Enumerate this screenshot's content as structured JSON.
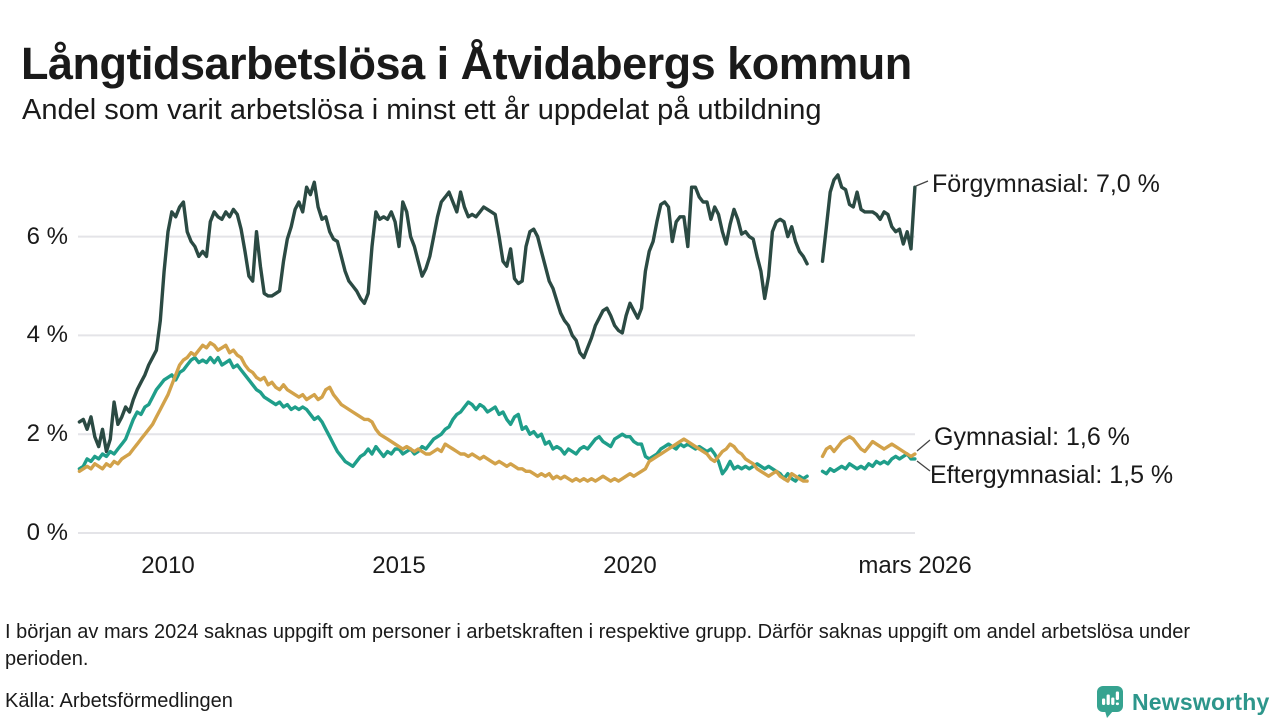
{
  "chart_data": {
    "type": "line",
    "title": "Långtidsarbetslösa i Åtvidabergs kommun",
    "subtitle": "Andel som varit arbetslösa i minst ett år uppdelat på utbildning",
    "unit": "%",
    "grid": true,
    "legend_position": "end-of-line-labels",
    "x_axis": {
      "ticks": [
        {
          "label": "2010",
          "year": 2010
        },
        {
          "label": "2015",
          "year": 2015
        },
        {
          "label": "2020",
          "year": 2020
        },
        {
          "label": "mars 2026",
          "year": 2026.17
        }
      ],
      "range_years": [
        2008.08,
        2026.25
      ]
    },
    "y_axis": {
      "unit": "%",
      "range": [
        0,
        7.5
      ],
      "ticks": [
        {
          "label": "0 %",
          "value": 0
        },
        {
          "label": "2 %",
          "value": 2
        },
        {
          "label": "4 %",
          "value": 4
        },
        {
          "label": "6 %",
          "value": 6
        }
      ]
    },
    "data_gap": {
      "from": "2023-12",
      "to": "2024-02"
    },
    "start_year": 2008,
    "start_month": 2,
    "frequency": "monthly",
    "series": [
      {
        "name": "Förgymnasial",
        "color": "#2b4a43",
        "end_value": "7,0 %",
        "end_label": "Förgymnasial: 7,0 %",
        "values": [
          2.25,
          2.3,
          2.1,
          2.35,
          1.95,
          1.75,
          2.1,
          1.65,
          1.9,
          2.65,
          2.2,
          2.35,
          2.55,
          2.45,
          2.7,
          2.9,
          3.05,
          3.2,
          3.4,
          3.55,
          3.7,
          4.3,
          5.3,
          6.1,
          6.5,
          6.4,
          6.6,
          6.7,
          6.1,
          5.9,
          5.8,
          5.6,
          5.7,
          5.6,
          6.3,
          6.5,
          6.4,
          6.35,
          6.5,
          6.4,
          6.55,
          6.45,
          6.15,
          5.7,
          5.2,
          5.1,
          6.1,
          5.4,
          4.85,
          4.8,
          4.8,
          4.85,
          4.9,
          5.5,
          5.95,
          6.2,
          6.55,
          6.7,
          6.5,
          7.0,
          6.85,
          7.1,
          6.6,
          6.35,
          6.4,
          6.1,
          5.95,
          5.9,
          5.6,
          5.3,
          5.1,
          5.0,
          4.9,
          4.75,
          4.65,
          4.85,
          5.8,
          6.5,
          6.35,
          6.4,
          6.35,
          6.5,
          6.3,
          5.8,
          6.7,
          6.5,
          6.0,
          5.8,
          5.5,
          5.2,
          5.35,
          5.6,
          6.0,
          6.4,
          6.7,
          6.8,
          6.9,
          6.7,
          6.5,
          6.9,
          6.6,
          6.4,
          6.45,
          6.4,
          6.5,
          6.6,
          6.55,
          6.5,
          6.45,
          6.0,
          5.5,
          5.4,
          5.75,
          5.15,
          5.05,
          5.1,
          5.8,
          6.1,
          6.15,
          6.0,
          5.7,
          5.4,
          5.1,
          4.95,
          4.7,
          4.45,
          4.3,
          4.2,
          4.0,
          3.9,
          3.65,
          3.55,
          3.75,
          3.95,
          4.2,
          4.35,
          4.5,
          4.55,
          4.4,
          4.2,
          4.1,
          4.05,
          4.4,
          4.65,
          4.5,
          4.35,
          4.55,
          5.3,
          5.7,
          5.9,
          6.3,
          6.65,
          6.7,
          6.6,
          5.9,
          6.3,
          6.4,
          6.4,
          5.8,
          7.0,
          7.0,
          6.8,
          6.7,
          6.7,
          6.35,
          6.6,
          6.45,
          6.1,
          5.85,
          6.25,
          6.55,
          6.35,
          6.05,
          6.1,
          6.0,
          5.95,
          5.6,
          5.3,
          4.75,
          5.2,
          6.1,
          6.3,
          6.35,
          6.3,
          6.0,
          6.2,
          5.9,
          5.7,
          5.6,
          5.45,
          null,
          null,
          null,
          5.5,
          6.2,
          6.9,
          7.15,
          7.25,
          7.0,
          6.95,
          6.65,
          6.6,
          6.9,
          6.55,
          6.5,
          6.5,
          6.5,
          6.45,
          6.35,
          6.5,
          6.45,
          6.2,
          6.1,
          6.15,
          5.85,
          6.1,
          5.75,
          7.0
        ]
      },
      {
        "name": "Eftergymnasial",
        "color": "#1f9e8a",
        "end_value": "1,5 %",
        "end_label": "Eftergymnasial: 1,5 %",
        "values": [
          1.3,
          1.35,
          1.5,
          1.45,
          1.55,
          1.5,
          1.6,
          1.55,
          1.65,
          1.6,
          1.7,
          1.8,
          1.9,
          2.1,
          2.3,
          2.45,
          2.4,
          2.55,
          2.6,
          2.75,
          2.9,
          3.0,
          3.1,
          3.15,
          3.2,
          3.1,
          3.25,
          3.3,
          3.4,
          3.5,
          3.55,
          3.45,
          3.5,
          3.45,
          3.55,
          3.45,
          3.55,
          3.4,
          3.45,
          3.5,
          3.35,
          3.4,
          3.3,
          3.2,
          3.1,
          3.0,
          2.9,
          2.85,
          2.75,
          2.7,
          2.65,
          2.6,
          2.65,
          2.55,
          2.6,
          2.5,
          2.55,
          2.5,
          2.55,
          2.5,
          2.4,
          2.3,
          2.35,
          2.25,
          2.1,
          1.95,
          1.8,
          1.65,
          1.55,
          1.45,
          1.4,
          1.35,
          1.45,
          1.55,
          1.6,
          1.7,
          1.6,
          1.75,
          1.65,
          1.55,
          1.65,
          1.6,
          1.7,
          1.7,
          1.6,
          1.65,
          1.7,
          1.6,
          1.65,
          1.75,
          1.7,
          1.8,
          1.9,
          1.95,
          2.0,
          2.1,
          2.15,
          2.3,
          2.4,
          2.45,
          2.55,
          2.65,
          2.6,
          2.5,
          2.6,
          2.55,
          2.45,
          2.5,
          2.55,
          2.4,
          2.45,
          2.3,
          2.2,
          2.35,
          2.4,
          2.1,
          2.15,
          2.0,
          2.05,
          1.95,
          2.0,
          1.8,
          1.85,
          1.7,
          1.75,
          1.7,
          1.6,
          1.7,
          1.65,
          1.6,
          1.7,
          1.75,
          1.7,
          1.8,
          1.9,
          1.95,
          1.85,
          1.8,
          1.75,
          1.9,
          1.95,
          2.0,
          1.95,
          1.95,
          1.85,
          1.8,
          1.8,
          1.55,
          1.5,
          1.55,
          1.6,
          1.7,
          1.75,
          1.8,
          1.75,
          1.7,
          1.8,
          1.75,
          1.8,
          1.75,
          1.7,
          1.75,
          1.7,
          1.65,
          1.7,
          1.6,
          1.45,
          1.2,
          1.3,
          1.45,
          1.3,
          1.35,
          1.3,
          1.35,
          1.3,
          1.35,
          1.4,
          1.35,
          1.3,
          1.35,
          1.3,
          1.25,
          1.2,
          1.1,
          1.2,
          1.1,
          1.05,
          1.15,
          1.1,
          1.15,
          null,
          null,
          null,
          1.25,
          1.2,
          1.3,
          1.25,
          1.3,
          1.35,
          1.3,
          1.4,
          1.35,
          1.3,
          1.35,
          1.3,
          1.4,
          1.35,
          1.45,
          1.4,
          1.45,
          1.4,
          1.5,
          1.55,
          1.5,
          1.55,
          1.6,
          1.5,
          1.5
        ]
      },
      {
        "name": "Gymnasial",
        "color": "#d2a24a",
        "end_value": "1,6 %",
        "end_label": "Gymnasial: 1,6 %",
        "values": [
          1.25,
          1.3,
          1.35,
          1.3,
          1.4,
          1.35,
          1.3,
          1.4,
          1.35,
          1.45,
          1.4,
          1.5,
          1.55,
          1.6,
          1.7,
          1.8,
          1.9,
          2.0,
          2.1,
          2.2,
          2.35,
          2.5,
          2.65,
          2.8,
          3.0,
          3.2,
          3.4,
          3.5,
          3.55,
          3.65,
          3.6,
          3.7,
          3.8,
          3.75,
          3.85,
          3.8,
          3.7,
          3.75,
          3.8,
          3.65,
          3.7,
          3.6,
          3.55,
          3.4,
          3.3,
          3.25,
          3.15,
          3.1,
          3.15,
          3.0,
          3.05,
          2.95,
          2.9,
          3.0,
          2.9,
          2.85,
          2.8,
          2.75,
          2.8,
          2.7,
          2.75,
          2.8,
          2.7,
          2.75,
          2.9,
          2.95,
          2.8,
          2.7,
          2.6,
          2.55,
          2.5,
          2.45,
          2.4,
          2.35,
          2.3,
          2.3,
          2.25,
          2.1,
          2.0,
          1.95,
          1.9,
          1.85,
          1.8,
          1.75,
          1.7,
          1.75,
          1.7,
          1.65,
          1.7,
          1.65,
          1.6,
          1.6,
          1.65,
          1.7,
          1.65,
          1.8,
          1.75,
          1.7,
          1.65,
          1.6,
          1.6,
          1.55,
          1.6,
          1.55,
          1.5,
          1.55,
          1.5,
          1.45,
          1.4,
          1.45,
          1.4,
          1.35,
          1.4,
          1.35,
          1.3,
          1.3,
          1.25,
          1.25,
          1.2,
          1.15,
          1.2,
          1.15,
          1.2,
          1.1,
          1.15,
          1.1,
          1.15,
          1.1,
          1.05,
          1.1,
          1.05,
          1.1,
          1.05,
          1.1,
          1.05,
          1.1,
          1.15,
          1.1,
          1.05,
          1.1,
          1.05,
          1.1,
          1.15,
          1.2,
          1.15,
          1.2,
          1.25,
          1.3,
          1.45,
          1.5,
          1.55,
          1.6,
          1.65,
          1.7,
          1.75,
          1.8,
          1.85,
          1.9,
          1.85,
          1.8,
          1.75,
          1.7,
          1.65,
          1.6,
          1.5,
          1.45,
          1.55,
          1.65,
          1.7,
          1.8,
          1.75,
          1.65,
          1.6,
          1.5,
          1.45,
          1.4,
          1.3,
          1.25,
          1.2,
          1.15,
          1.2,
          1.25,
          1.15,
          1.1,
          1.05,
          1.2,
          1.15,
          1.1,
          1.05,
          1.05,
          null,
          null,
          null,
          1.55,
          1.7,
          1.75,
          1.65,
          1.75,
          1.85,
          1.9,
          1.95,
          1.9,
          1.8,
          1.7,
          1.65,
          1.75,
          1.85,
          1.8,
          1.75,
          1.7,
          1.75,
          1.8,
          1.75,
          1.7,
          1.65,
          1.6,
          1.55,
          1.6
        ]
      }
    ]
  },
  "notes": {
    "footnote": "I början av mars 2024 saknas uppgift om personer i arbetskraften i respektive grupp. Därför saknas uppgift om andel arbetslösa under perioden.",
    "source": "Källa: Arbetsförmedlingen"
  },
  "branding": {
    "name": "Newsworthy",
    "icon": "bar-chart-pin-icon",
    "icon_color": "#36a390",
    "text_color": "#2d968b"
  },
  "colors": {
    "grid": "#e4e4e8",
    "text": "#1a1a1a",
    "background": "#ffffff"
  }
}
